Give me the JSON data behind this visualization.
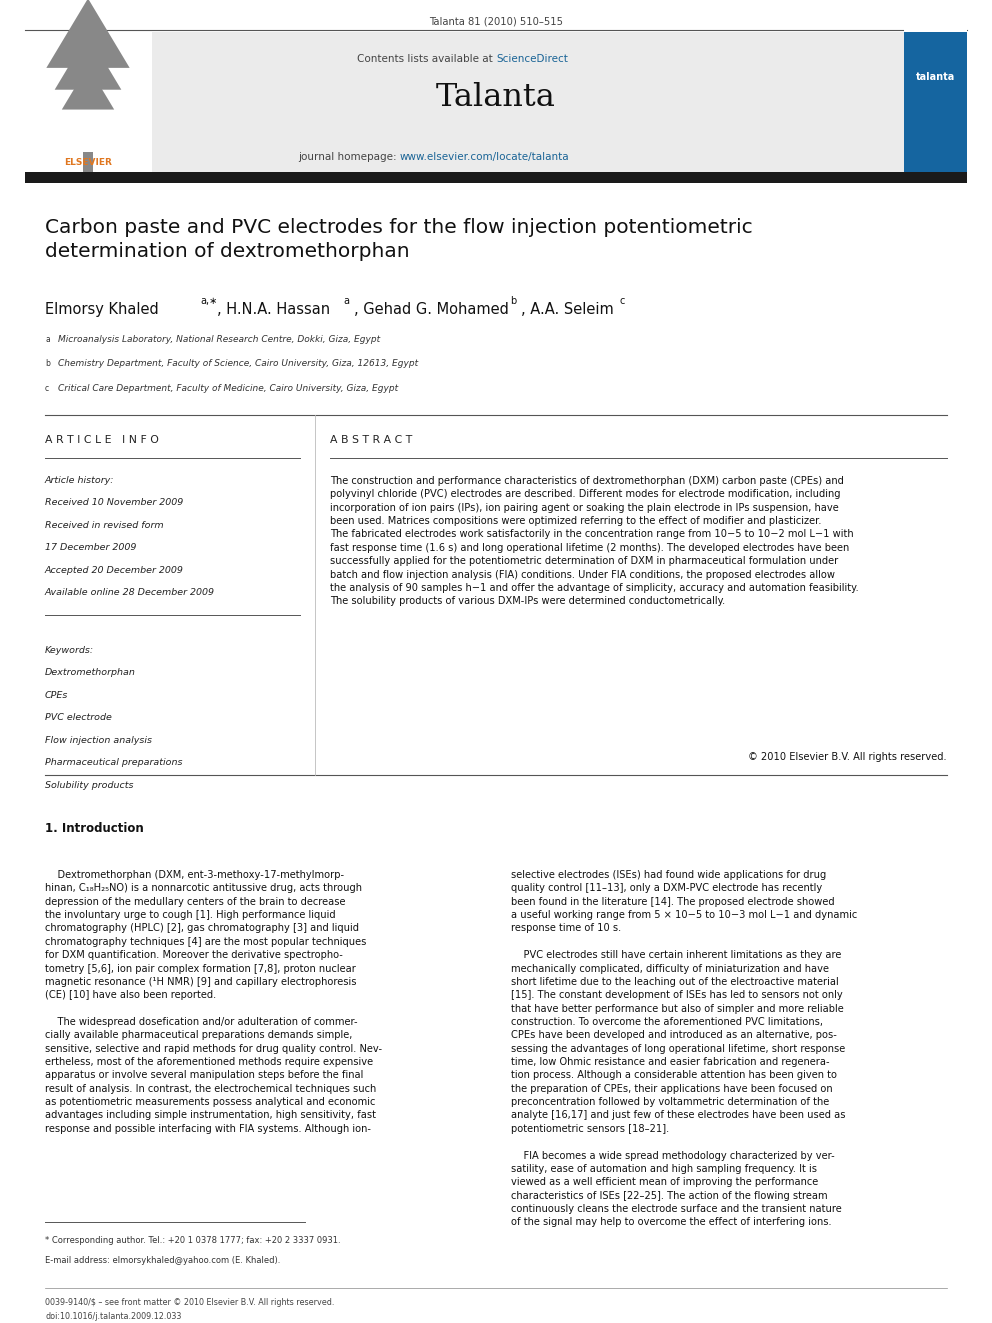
{
  "page_width": 9.92,
  "page_height": 13.23,
  "bg_color": "#ffffff",
  "journal_citation": "Talanta 81 (2010) 510–515",
  "header_bg": "#ebebeb",
  "contents_text": "Contents lists available at ",
  "sciencedirect_text": "ScienceDirect",
  "sciencedirect_color": "#1a6496",
  "journal_name": "Talanta",
  "journal_homepage_text": "journal homepage: ",
  "journal_url": "www.elsevier.com/locate/talanta",
  "journal_url_color": "#1a6496",
  "header_bar_color": "#1a1a1a",
  "paper_title": "Carbon paste and PVC electrodes for the flow injection potentiometric\ndetermination of dextromethorphan",
  "affil_a": "Microanalysis Laboratory, National Research Centre, Dokki, Giza, Egypt",
  "affil_b": "Chemistry Department, Faculty of Science, Cairo University, Giza, 12613, Egypt",
  "affil_c": "Critical Care Department, Faculty of Medicine, Cairo University, Giza, Egypt",
  "section_article_info": "A R T I C L E   I N F O",
  "section_abstract": "A B S T R A C T",
  "abstract_text": "The construction and performance characteristics of dextromethorphan (DXM) carbon paste (CPEs) and\npolyvinyl chloride (PVC) electrodes are described. Different modes for electrode modification, including\nincorporation of ion pairs (IPs), ion pairing agent or soaking the plain electrode in IPs suspension, have\nbeen used. Matrices compositions were optimized referring to the effect of modifier and plasticizer.\nThe fabricated electrodes work satisfactorily in the concentration range from 10−5 to 10−2 mol L−1 with\nfast response time (1.6 s) and long operational lifetime (2 months). The developed electrodes have been\nsuccessfully applied for the potentiometric determination of DXM in pharmaceutical formulation under\nbatch and flow injection analysis (FIA) conditions. Under FIA conditions, the proposed electrodes allow\nthe analysis of 90 samples h−1 and offer the advantage of simplicity, accuracy and automation feasibility.\nThe solubility products of various DXM-IPs were determined conductometrically.",
  "copyright_text": "© 2010 Elsevier B.V. All rights reserved.",
  "intro_heading": "1. Introduction",
  "intro_col1_p1": "    Dextromethorphan (DXM, ent-3-methoxy-17-methylmorp-\nhinan, C₁₈H₂₅NO) is a nonnarcotic antitussive drug, acts through\ndepression of the medullary centers of the brain to decrease\nthe involuntary urge to cough [1]. High performance liquid\nchromatography (HPLC) [2], gas chromatography [3] and liquid\nchromatography techniques [4] are the most popular techniques\nfor DXM quantification. Moreover the derivative spectropho-\ntometry [5,6], ion pair complex formation [7,8], proton nuclear\nmagnetic resonance (¹H NMR) [9] and capillary electrophoresis\n(CE) [10] have also been reported.",
  "intro_col1_p2": "    The widespread dosefication and/or adulteration of commer-\ncially available pharmaceutical preparations demands simple,\nsensitive, selective and rapid methods for drug quality control. Nev-\nertheless, most of the aforementioned methods require expensive\napparatus or involve several manipulation steps before the final\nresult of analysis. In contrast, the electrochemical techniques such\nas potentiometric measurements possess analytical and economic\nadvantages including simple instrumentation, high sensitivity, fast\nresponse and possible interfacing with FIA systems. Although ion-",
  "intro_col2_p1": "selective electrodes (ISEs) had found wide applications for drug\nquality control [11–13], only a DXM-PVC electrode has recently\nbeen found in the literature [14]. The proposed electrode showed\na useful working range from 5 × 10−5 to 10−3 mol L−1 and dynamic\nresponse time of 10 s.",
  "intro_col2_p2": "    PVC electrodes still have certain inherent limitations as they are\nmechanically complicated, difficulty of miniaturization and have\nshort lifetime due to the leaching out of the electroactive material\n[15]. The constant development of ISEs has led to sensors not only\nthat have better performance but also of simpler and more reliable\nconstruction. To overcome the aforementioned PVC limitations,\nCPEs have been developed and introduced as an alternative, pos-\nsessing the advantages of long operational lifetime, short response\ntime, low Ohmic resistance and easier fabrication and regenera-\ntion process. Although a considerable attention has been given to\nthe preparation of CPEs, their applications have been focused on\npreconcentration followed by voltammetric determination of the\nanalyte [16,17] and just few of these electrodes have been used as\npotentiometric sensors [18–21].",
  "intro_col2_p3": "    FIA becomes a wide spread methodology characterized by ver-\nsatility, ease of automation and high sampling frequency. It is\nviewed as a well efficient mean of improving the performance\ncharacteristics of ISEs [22–25]. The action of the flowing stream\ncontinuously cleans the electrode surface and the transient nature\nof the signal may help to overcome the effect of interfering ions.",
  "footnote1": "* Corresponding author. Tel.: +20 1 0378 1777; fax: +20 2 3337 0931.",
  "footnote2": "E-mail address: elmorsykhaled@yahoo.com (E. Khaled).",
  "footer_left": "0039-9140/$ – see front matter © 2010 Elsevier B.V. All rights reserved.",
  "footer_doi": "doi:10.1016/j.talanta.2009.12.033",
  "talanta_cover_color": "#1565a0",
  "link_color": "#1a6496"
}
